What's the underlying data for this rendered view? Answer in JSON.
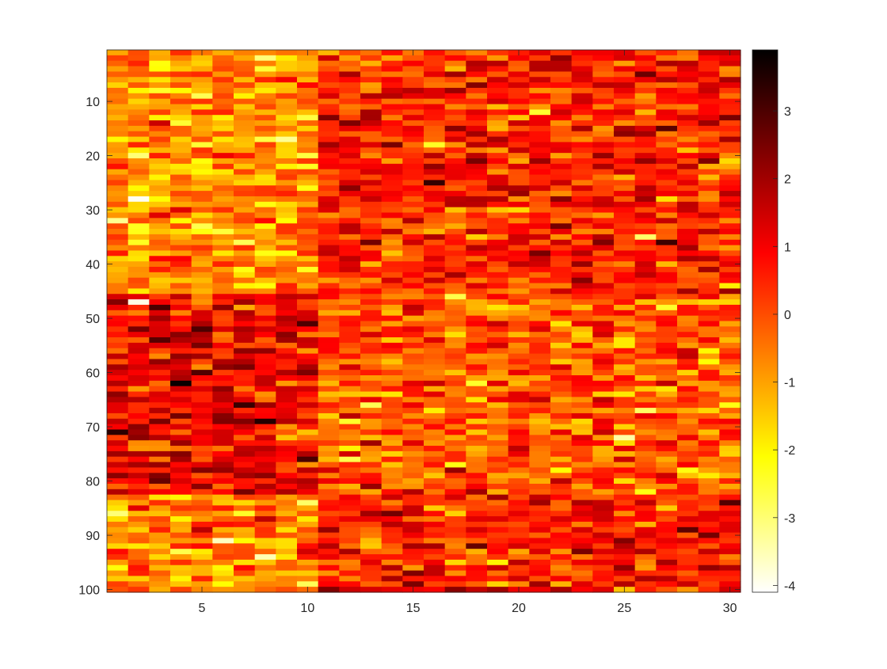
{
  "chart_data": {
    "type": "heatmap",
    "title": "",
    "xlabel": "",
    "ylabel": "",
    "colormap": "hot (reversed)",
    "rows": 100,
    "cols": 30,
    "x_ticks": [
      5,
      10,
      15,
      20,
      25,
      30
    ],
    "y_ticks": [
      10,
      20,
      30,
      40,
      50,
      60,
      70,
      80,
      90,
      100
    ],
    "xlim": [
      0.5,
      30.5
    ],
    "ylim": [
      100.5,
      0.5
    ],
    "color_limits": [
      -4.1,
      3.9
    ],
    "colorbar_ticks": [
      3,
      2,
      1,
      0,
      -1,
      -2,
      -3,
      -4
    ],
    "region_means": [
      {
        "rows": [
          1,
          45
        ],
        "cols": [
          1,
          10
        ],
        "mean": -0.8
      },
      {
        "rows": [
          1,
          45
        ],
        "cols": [
          11,
          30
        ],
        "mean": 0.5
      },
      {
        "rows": [
          46,
          82
        ],
        "cols": [
          1,
          10
        ],
        "mean": 1.0
      },
      {
        "rows": [
          46,
          82
        ],
        "cols": [
          11,
          30
        ],
        "mean": -0.2
      },
      {
        "rows": [
          83,
          100
        ],
        "cols": [
          1,
          10
        ],
        "mean": -0.8
      },
      {
        "rows": [
          83,
          100
        ],
        "cols": [
          11,
          30
        ],
        "mean": 0.6
      }
    ],
    "cell_std": 0.85,
    "extremes": [
      {
        "row": 62,
        "col": 4,
        "value": 3.8
      },
      {
        "row": 71,
        "col": 1,
        "value": 3.4
      },
      {
        "row": 69,
        "col": 8,
        "value": 3.5
      },
      {
        "row": 47,
        "col": 2,
        "value": -3.9
      },
      {
        "row": 28,
        "col": 2,
        "value": -4.0
      },
      {
        "row": 91,
        "col": 6,
        "value": -3.6
      },
      {
        "row": 94,
        "col": 8,
        "value": -3.5
      }
    ]
  },
  "colors": {
    "axis": "#262626",
    "background": "#ffffff"
  }
}
